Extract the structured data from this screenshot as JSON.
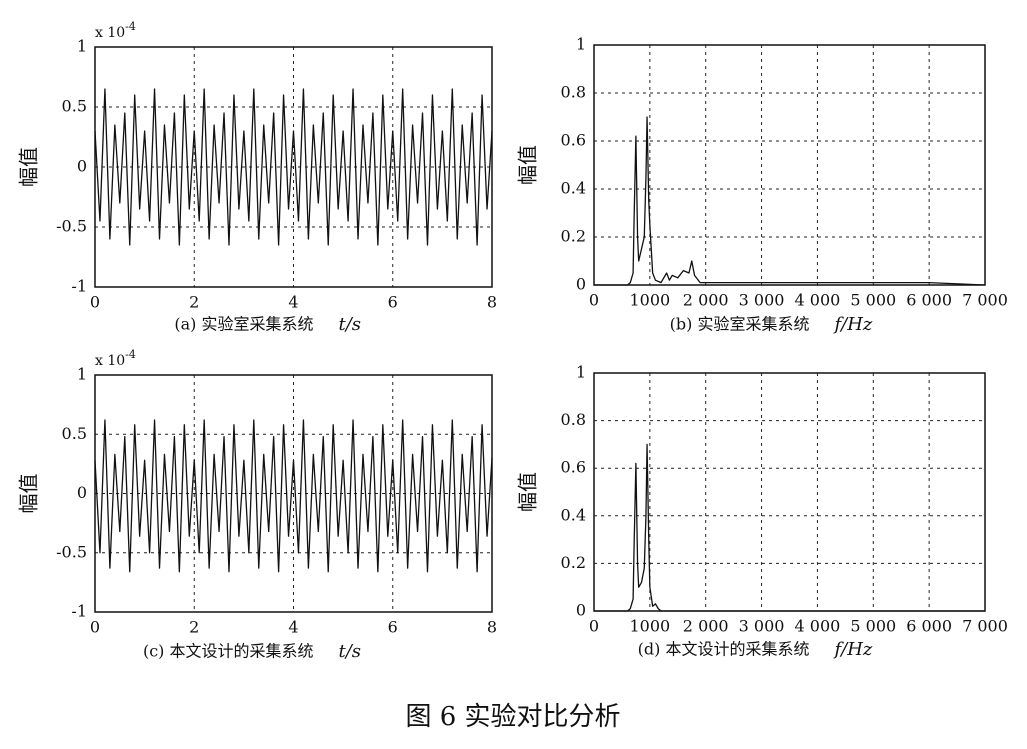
{
  "figure_caption": "图 6   实验对比分析",
  "chart_data": [
    {
      "type": "line",
      "caption": "(a) 实验室采集系统",
      "xlabel": "t/s",
      "ylabel": "幅值",
      "scale_label": "x 10",
      "scale_exponent": "-4",
      "color": "#111111",
      "grid": true,
      "xlim": [
        0,
        8
      ],
      "xticks": [
        0,
        2,
        4,
        6,
        8
      ],
      "ylim": [
        -1,
        1
      ],
      "yticks": [
        -1,
        -0.5,
        0,
        0.5,
        1
      ],
      "x": [
        0,
        0.1,
        0.2,
        0.3,
        0.4,
        0.5,
        0.6,
        0.7,
        0.8,
        0.9,
        1,
        1.1,
        1.2,
        1.3,
        1.4,
        1.5,
        1.6,
        1.7,
        1.8,
        1.9,
        2,
        2.1,
        2.2,
        2.3,
        2.4,
        2.5,
        2.6,
        2.7,
        2.8,
        2.9,
        3,
        3.1,
        3.2,
        3.3,
        3.4,
        3.5,
        3.6,
        3.7,
        3.8,
        3.9,
        4,
        4.1,
        4.2,
        4.3,
        4.4,
        4.5,
        4.6,
        4.7,
        4.8,
        4.9,
        5,
        5.1,
        5.2,
        5.3,
        5.4,
        5.5,
        5.6,
        5.7,
        5.8,
        5.9,
        6,
        6.1,
        6.2,
        6.3,
        6.4,
        6.5,
        6.6,
        6.7,
        6.8,
        6.9,
        7,
        7.1,
        7.2,
        7.3,
        7.4,
        7.5,
        7.6,
        7.7,
        7.8,
        7.9,
        8
      ],
      "values": [
        0.3,
        -0.45,
        0.65,
        -0.6,
        0.35,
        -0.3,
        0.45,
        -0.65,
        0.6,
        -0.35,
        0.3,
        -0.45,
        0.65,
        -0.6,
        0.35,
        -0.3,
        0.45,
        -0.65,
        0.6,
        -0.35,
        0.3,
        -0.45,
        0.65,
        -0.6,
        0.35,
        -0.3,
        0.45,
        -0.65,
        0.6,
        -0.35,
        0.3,
        -0.45,
        0.65,
        -0.6,
        0.35,
        -0.3,
        0.45,
        -0.65,
        0.6,
        -0.35,
        0.3,
        -0.45,
        0.65,
        -0.6,
        0.35,
        -0.3,
        0.45,
        -0.65,
        0.6,
        -0.35,
        0.3,
        -0.45,
        0.65,
        -0.6,
        0.35,
        -0.3,
        0.45,
        -0.65,
        0.6,
        -0.35,
        0.3,
        -0.45,
        0.65,
        -0.6,
        0.35,
        -0.3,
        0.45,
        -0.65,
        0.6,
        -0.35,
        0.3,
        -0.45,
        0.65,
        -0.6,
        0.35,
        -0.3,
        0.45,
        -0.65,
        0.6,
        -0.35,
        0.3
      ]
    },
    {
      "type": "line",
      "caption": "(b) 实验室采集系统",
      "xlabel": "f/Hz",
      "ylabel": "幅值",
      "color": "#111111",
      "grid": true,
      "xlim": [
        0,
        7000
      ],
      "xticks": [
        0,
        1000,
        {
          "value": 2000,
          "label": "2 000"
        },
        {
          "value": 3000,
          "label": "3 000"
        },
        {
          "value": 4000,
          "label": "4 000"
        },
        {
          "value": 5000,
          "label": "5 000"
        },
        {
          "value": 6000,
          "label": "6 000"
        },
        {
          "value": 7000,
          "label": "7 000"
        }
      ],
      "ylim": [
        0,
        1
      ],
      "yticks": [
        0,
        0.2,
        0.4,
        0.6,
        0.8,
        1
      ],
      "x": [
        0,
        600,
        650,
        700,
        720,
        750,
        780,
        800,
        850,
        900,
        930,
        950,
        980,
        1000,
        1050,
        1100,
        1200,
        1300,
        1350,
        1400,
        1500,
        1600,
        1700,
        1750,
        1800,
        1900,
        2000,
        3000,
        4000,
        5000,
        6000,
        7000
      ],
      "values": [
        0,
        0,
        0.01,
        0.05,
        0.3,
        0.62,
        0.2,
        0.1,
        0.15,
        0.2,
        0.45,
        0.7,
        0.35,
        0.25,
        0.05,
        0.02,
        0.01,
        0.05,
        0.02,
        0.04,
        0.03,
        0.06,
        0.05,
        0.1,
        0.04,
        0.01,
        0.01,
        0.01,
        0.01,
        0.01,
        0.01,
        0
      ]
    },
    {
      "type": "line",
      "caption": "(c) 本文设计的采集系统",
      "xlabel": "t/s",
      "ylabel": "幅值",
      "scale_label": "x 10",
      "scale_exponent": "-4",
      "color": "#111111",
      "grid": true,
      "xlim": [
        0,
        8
      ],
      "xticks": [
        0,
        2,
        4,
        6,
        8
      ],
      "ylim": [
        -1,
        1
      ],
      "yticks": [
        -1,
        -0.5,
        0,
        0.5,
        1
      ],
      "x": [
        0,
        0.1,
        0.2,
        0.3,
        0.4,
        0.5,
        0.6,
        0.7,
        0.8,
        0.9,
        1,
        1.1,
        1.2,
        1.3,
        1.4,
        1.5,
        1.6,
        1.7,
        1.8,
        1.9,
        2,
        2.1,
        2.2,
        2.3,
        2.4,
        2.5,
        2.6,
        2.7,
        2.8,
        2.9,
        3,
        3.1,
        3.2,
        3.3,
        3.4,
        3.5,
        3.6,
        3.7,
        3.8,
        3.9,
        4,
        4.1,
        4.2,
        4.3,
        4.4,
        4.5,
        4.6,
        4.7,
        4.8,
        4.9,
        5,
        5.1,
        5.2,
        5.3,
        5.4,
        5.5,
        5.6,
        5.7,
        5.8,
        5.9,
        6,
        6.1,
        6.2,
        6.3,
        6.4,
        6.5,
        6.6,
        6.7,
        6.8,
        6.9,
        7,
        7.1,
        7.2,
        7.3,
        7.4,
        7.5,
        7.6,
        7.7,
        7.8,
        7.9,
        8
      ],
      "values": [
        0.28,
        -0.5,
        0.62,
        -0.63,
        0.33,
        -0.32,
        0.48,
        -0.66,
        0.58,
        -0.36,
        0.28,
        -0.5,
        0.62,
        -0.63,
        0.33,
        -0.32,
        0.48,
        -0.66,
        0.58,
        -0.36,
        0.28,
        -0.5,
        0.62,
        -0.63,
        0.33,
        -0.32,
        0.48,
        -0.66,
        0.58,
        -0.36,
        0.28,
        -0.5,
        0.62,
        -0.63,
        0.33,
        -0.32,
        0.48,
        -0.66,
        0.58,
        -0.36,
        0.28,
        -0.5,
        0.62,
        -0.63,
        0.33,
        -0.32,
        0.48,
        -0.66,
        0.58,
        -0.36,
        0.28,
        -0.5,
        0.62,
        -0.63,
        0.33,
        -0.32,
        0.48,
        -0.66,
        0.58,
        -0.36,
        0.28,
        -0.5,
        0.62,
        -0.63,
        0.33,
        -0.32,
        0.48,
        -0.66,
        0.58,
        -0.36,
        0.28,
        -0.5,
        0.62,
        -0.63,
        0.33,
        -0.32,
        0.48,
        -0.66,
        0.58,
        -0.36,
        0.3
      ]
    },
    {
      "type": "line",
      "caption": "(d) 本文设计的采集系统",
      "xlabel": "f/Hz",
      "ylabel": "幅值",
      "color": "#111111",
      "grid": true,
      "xlim": [
        0,
        7000
      ],
      "xticks": [
        0,
        1000,
        {
          "value": 2000,
          "label": "2 000"
        },
        {
          "value": 3000,
          "label": "3 000"
        },
        {
          "value": 4000,
          "label": "4 000"
        },
        {
          "value": 5000,
          "label": "5 000"
        },
        {
          "value": 6000,
          "label": "6 000"
        },
        {
          "value": 7000,
          "label": "7 000"
        }
      ],
      "ylim": [
        0,
        1
      ],
      "yticks": [
        0,
        0.2,
        0.4,
        0.6,
        0.8,
        1
      ],
      "x": [
        0,
        600,
        650,
        700,
        720,
        750,
        780,
        800,
        850,
        900,
        930,
        950,
        980,
        1000,
        1050,
        1100,
        1150,
        1200,
        2000,
        7000
      ],
      "values": [
        0,
        0,
        0.01,
        0.05,
        0.3,
        0.62,
        0.2,
        0.1,
        0.12,
        0.18,
        0.4,
        0.7,
        0.3,
        0.1,
        0.02,
        0.03,
        0.01,
        0,
        0,
        0
      ]
    }
  ]
}
